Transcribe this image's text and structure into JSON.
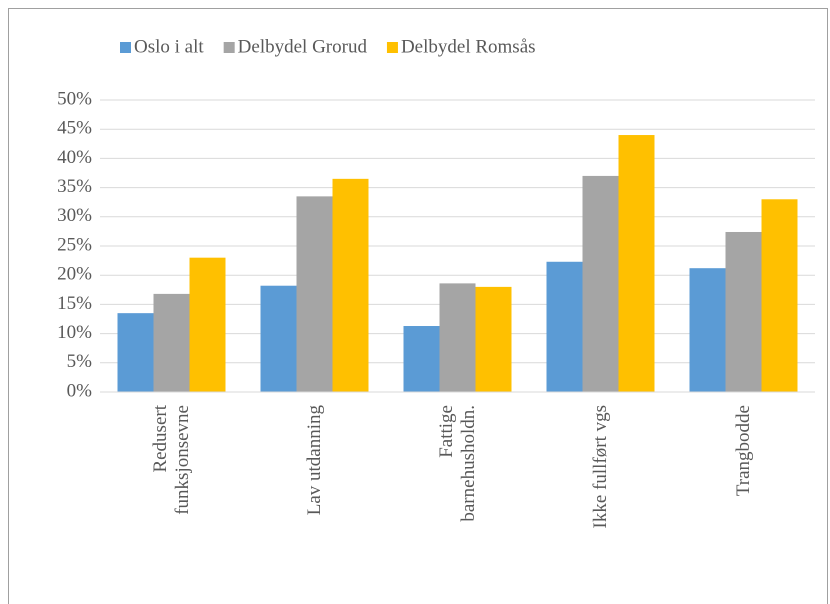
{
  "chart_data": {
    "type": "bar",
    "categories": [
      "Redusert\nfunksjonsevne",
      "Lav utdanning",
      "Fattige\nbarnehusholdn.",
      "Ikke fullført vgs",
      "Trangbodde"
    ],
    "series": [
      {
        "name": "Oslo i alt",
        "color": "#5b9bd5",
        "values": [
          13.5,
          18.2,
          11.3,
          22.3,
          21.2
        ]
      },
      {
        "name": "Delbydel Grorud",
        "color": "#a5a5a5",
        "values": [
          16.8,
          33.5,
          18.6,
          37,
          27.4
        ]
      },
      {
        "name": "Delbydel Romsås",
        "color": "#ffc000",
        "values": [
          23,
          36.5,
          18,
          44,
          33
        ]
      }
    ],
    "ylim": [
      0,
      50
    ],
    "yticks": [
      {
        "value": 0,
        "label": "0%"
      },
      {
        "value": 5,
        "label": "5%"
      },
      {
        "value": 10,
        "label": "10%"
      },
      {
        "value": 15,
        "label": "15%"
      },
      {
        "value": 20,
        "label": "20%"
      },
      {
        "value": 25,
        "label": "25%"
      },
      {
        "value": 30,
        "label": "30%"
      },
      {
        "value": 35,
        "label": "35%"
      },
      {
        "value": 40,
        "label": "40%"
      },
      {
        "value": 45,
        "label": "45%"
      },
      {
        "value": 50,
        "label": "50%"
      }
    ],
    "grid": true,
    "legend": "top"
  }
}
